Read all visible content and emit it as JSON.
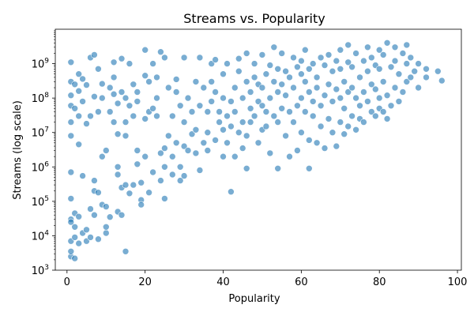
{
  "chart_data": {
    "type": "scatter",
    "title": "Streams vs. Popularity",
    "xlabel": "Popularity",
    "ylabel": "Streams (log scale)",
    "xlim": [
      -3,
      101
    ],
    "ylim": [
      1000,
      10000000000
    ],
    "yscale": "log",
    "x_ticks": [
      0,
      20,
      40,
      60,
      80,
      100
    ],
    "y_tick_exponents": [
      3,
      4,
      5,
      6,
      7,
      8,
      9
    ],
    "y_tick_base": "10",
    "grid": false,
    "point_color": "#1f77b4",
    "point_alpha": 0.6,
    "points": [
      [
        1,
        1100000000
      ],
      [
        1,
        30000
      ],
      [
        1,
        2500
      ],
      [
        1,
        3500
      ],
      [
        1,
        7000
      ],
      [
        1,
        25000
      ],
      [
        1,
        120000
      ],
      [
        1,
        700000
      ],
      [
        1,
        8000000
      ],
      [
        1,
        20000000
      ],
      [
        1,
        120000000
      ],
      [
        1,
        300000000
      ],
      [
        1,
        60000000
      ],
      [
        2,
        9000
      ],
      [
        2,
        45000
      ],
      [
        2,
        250000000
      ],
      [
        2,
        2200
      ],
      [
        2,
        18000
      ],
      [
        2,
        50000000
      ],
      [
        3,
        36000
      ],
      [
        3,
        4500000
      ],
      [
        3,
        30000000
      ],
      [
        3,
        500000000
      ],
      [
        3,
        160000000
      ],
      [
        3,
        6000
      ],
      [
        4,
        12000
      ],
      [
        4,
        80000000
      ],
      [
        4,
        360000000
      ],
      [
        4,
        550000
      ],
      [
        5,
        15000
      ],
      [
        5,
        18000000
      ],
      [
        5,
        240000000
      ],
      [
        5,
        7000
      ],
      [
        6,
        60000
      ],
      [
        6,
        1500000000
      ],
      [
        6,
        30000000
      ],
      [
        6,
        9000
      ],
      [
        7,
        40000
      ],
      [
        7,
        1800000000
      ],
      [
        7,
        110000000
      ],
      [
        7,
        400000
      ],
      [
        7,
        200000
      ],
      [
        8,
        180000
      ],
      [
        8,
        40000000
      ],
      [
        8,
        8000
      ],
      [
        8,
        700000000
      ],
      [
        9,
        2000000
      ],
      [
        9,
        100000000
      ],
      [
        9,
        80000
      ],
      [
        9,
        260000000
      ],
      [
        10,
        3000000
      ],
      [
        10,
        12000
      ],
      [
        10,
        70000
      ],
      [
        10,
        18000
      ],
      [
        11,
        40000000
      ],
      [
        11,
        200000000
      ],
      [
        11,
        35000
      ],
      [
        12,
        1100000000
      ],
      [
        12,
        400000000
      ],
      [
        12,
        130000000
      ],
      [
        12,
        20000000
      ],
      [
        13,
        600000
      ],
      [
        13,
        1000000
      ],
      [
        13,
        50000
      ],
      [
        13,
        9000000
      ],
      [
        13,
        70000000
      ],
      [
        14,
        40000
      ],
      [
        14,
        250000
      ],
      [
        14,
        1400000000
      ],
      [
        14,
        150000000
      ],
      [
        15,
        3500
      ],
      [
        15,
        100000000
      ],
      [
        15,
        300000
      ],
      [
        15,
        8000000
      ],
      [
        15,
        20000000
      ],
      [
        16,
        60000000
      ],
      [
        16,
        1000000000
      ],
      [
        16,
        170000
      ],
      [
        17,
        250000000
      ],
      [
        17,
        30000000
      ],
      [
        17,
        300000
      ],
      [
        18,
        3000000
      ],
      [
        18,
        1200000
      ],
      [
        18,
        80000000
      ],
      [
        18,
        150000000
      ],
      [
        19,
        110000
      ],
      [
        19,
        350000
      ],
      [
        19,
        80000
      ],
      [
        20,
        2500000000
      ],
      [
        20,
        25000000
      ],
      [
        20,
        450000000
      ],
      [
        20,
        2000000
      ],
      [
        21,
        40000000
      ],
      [
        21,
        300000000
      ],
      [
        21,
        180000
      ],
      [
        22,
        700000
      ],
      [
        22,
        1000000000
      ],
      [
        22,
        50000000
      ],
      [
        23,
        400000000
      ],
      [
        23,
        30000000
      ],
      [
        23,
        100000000
      ],
      [
        24,
        2200000000
      ],
      [
        24,
        400000
      ],
      [
        24,
        2500000
      ],
      [
        25,
        120000
      ],
      [
        25,
        1000000
      ],
      [
        25,
        3500000
      ],
      [
        25,
        1500000000
      ],
      [
        26,
        8000000
      ],
      [
        26,
        200000000
      ],
      [
        27,
        2000000
      ],
      [
        27,
        600000
      ],
      [
        27,
        30000000
      ],
      [
        28,
        150000000
      ],
      [
        28,
        5000000
      ],
      [
        28,
        350000000
      ],
      [
        29,
        1000000
      ],
      [
        29,
        400000
      ],
      [
        29,
        60000000
      ],
      [
        30,
        4000000
      ],
      [
        30,
        20000000
      ],
      [
        30,
        550000
      ],
      [
        30,
        1500000000
      ],
      [
        31,
        100000000
      ],
      [
        31,
        3000000
      ],
      [
        32,
        40000000
      ],
      [
        32,
        9000000
      ],
      [
        33,
        12000000
      ],
      [
        33,
        300000000
      ],
      [
        33,
        2500000
      ],
      [
        34,
        1500000000
      ],
      [
        34,
        60000000
      ],
      [
        34,
        800000
      ],
      [
        35,
        5000000
      ],
      [
        35,
        200000000
      ],
      [
        36,
        10000000
      ],
      [
        36,
        40000000
      ],
      [
        36,
        3000000
      ],
      [
        37,
        300000000
      ],
      [
        37,
        1000000000
      ],
      [
        37,
        80000000
      ],
      [
        38,
        6000000
      ],
      [
        38,
        150000000
      ],
      [
        38,
        1300000000
      ],
      [
        39,
        20000000
      ],
      [
        39,
        40000000
      ],
      [
        40,
        2000000
      ],
      [
        40,
        100000000
      ],
      [
        40,
        500000000
      ],
      [
        40,
        12000000
      ],
      [
        41,
        5000000
      ],
      [
        41,
        30000000
      ],
      [
        41,
        1000000000
      ],
      [
        42,
        190000
      ],
      [
        42,
        15000000
      ],
      [
        42,
        80000000
      ],
      [
        43,
        2000000
      ],
      [
        43,
        200000000
      ],
      [
        43,
        40000000
      ],
      [
        44,
        10000000
      ],
      [
        44,
        600000000
      ],
      [
        44,
        1400000000
      ],
      [
        45,
        20000000
      ],
      [
        45,
        3500000
      ],
      [
        45,
        100000000
      ],
      [
        46,
        900000
      ],
      [
        46,
        300000000
      ],
      [
        46,
        8000000
      ],
      [
        46,
        2000000000
      ],
      [
        47,
        50000000
      ],
      [
        47,
        150000000
      ],
      [
        47,
        20000000
      ],
      [
        48,
        400000000
      ],
      [
        48,
        1000000000
      ],
      [
        48,
        30000000
      ],
      [
        49,
        5000000
      ],
      [
        49,
        80000000
      ],
      [
        49,
        250000000
      ],
      [
        50,
        12000000
      ],
      [
        50,
        60000000
      ],
      [
        50,
        200000000
      ],
      [
        50,
        1800000000
      ],
      [
        51,
        40000000
      ],
      [
        51,
        500000000
      ],
      [
        51,
        15000000
      ],
      [
        52,
        2500000
      ],
      [
        52,
        100000000
      ],
      [
        52,
        900000000
      ],
      [
        53,
        30000000
      ],
      [
        53,
        300000000
      ],
      [
        53,
        3000000000
      ],
      [
        54,
        20000000
      ],
      [
        54,
        150000000
      ],
      [
        54,
        900000
      ],
      [
        54,
        700000000
      ],
      [
        55,
        50000000
      ],
      [
        55,
        250000000
      ],
      [
        55,
        2000000000
      ],
      [
        56,
        8000000
      ],
      [
        56,
        120000000
      ],
      [
        56,
        600000000
      ],
      [
        57,
        2000000
      ],
      [
        57,
        40000000
      ],
      [
        57,
        400000000
      ],
      [
        58,
        20000000
      ],
      [
        58,
        200000000
      ],
      [
        58,
        1500000000
      ],
      [
        59,
        60000000
      ],
      [
        59,
        800000000
      ],
      [
        59,
        3000000
      ],
      [
        60,
        10000000
      ],
      [
        60,
        100000000
      ],
      [
        60,
        500000000
      ],
      [
        60,
        1200000000
      ],
      [
        61,
        40000000
      ],
      [
        61,
        300000000
      ],
      [
        61,
        2500000000
      ],
      [
        62,
        900000
      ],
      [
        62,
        150000000
      ],
      [
        62,
        700000000
      ],
      [
        62,
        6000000
      ],
      [
        63,
        30000000
      ],
      [
        63,
        80000000
      ],
      [
        63,
        1000000000
      ],
      [
        64,
        5000000
      ],
      [
        64,
        200000000
      ],
      [
        64,
        400000000
      ],
      [
        65,
        15000000
      ],
      [
        65,
        60000000
      ],
      [
        65,
        1500000000
      ],
      [
        66,
        3500000
      ],
      [
        66,
        120000000
      ],
      [
        66,
        900000000
      ],
      [
        67,
        25000000
      ],
      [
        67,
        250000000
      ],
      [
        67,
        1800000000
      ],
      [
        68,
        10000000
      ],
      [
        68,
        80000000
      ],
      [
        68,
        600000000
      ],
      [
        69,
        4000000
      ],
      [
        69,
        180000000
      ],
      [
        69,
        1200000000
      ],
      [
        70,
        20000000
      ],
      [
        70,
        100000000
      ],
      [
        70,
        700000000
      ],
      [
        70,
        2500000000
      ],
      [
        71,
        50000000
      ],
      [
        71,
        300000000
      ],
      [
        71,
        9000000
      ],
      [
        72,
        15000000
      ],
      [
        72,
        150000000
      ],
      [
        72,
        1100000000
      ],
      [
        72,
        3500000000
      ],
      [
        73,
        30000000
      ],
      [
        73,
        200000000
      ],
      [
        73,
        800000000
      ],
      [
        74,
        12000000
      ],
      [
        74,
        100000000
      ],
      [
        74,
        2000000000
      ],
      [
        75,
        60000000
      ],
      [
        75,
        400000000
      ],
      [
        75,
        25000000
      ],
      [
        76,
        150000000
      ],
      [
        76,
        1200000000
      ],
      [
        76,
        20000000
      ],
      [
        77,
        80000000
      ],
      [
        77,
        600000000
      ],
      [
        77,
        3000000000
      ],
      [
        78,
        40000000
      ],
      [
        78,
        250000000
      ],
      [
        78,
        1500000000
      ],
      [
        79,
        30000000
      ],
      [
        79,
        180000000
      ],
      [
        79,
        900000000
      ],
      [
        80,
        50000000
      ],
      [
        80,
        100000000
      ],
      [
        80,
        700000000
      ],
      [
        80,
        2500000000
      ],
      [
        81,
        40000000
      ],
      [
        81,
        300000000
      ],
      [
        81,
        1800000000
      ],
      [
        82,
        120000000
      ],
      [
        82,
        4000000000
      ],
      [
        82,
        25000000
      ],
      [
        83,
        60000000
      ],
      [
        83,
        800000000
      ],
      [
        84,
        200000000
      ],
      [
        84,
        1200000000
      ],
      [
        84,
        3000000000
      ],
      [
        85,
        80000000
      ],
      [
        85,
        500000000
      ],
      [
        86,
        150000000
      ],
      [
        86,
        2000000000
      ],
      [
        87,
        300000000
      ],
      [
        87,
        1000000000
      ],
      [
        87,
        3500000000
      ],
      [
        88,
        400000000
      ],
      [
        88,
        1500000000
      ],
      [
        89,
        600000000
      ],
      [
        90,
        200000000
      ],
      [
        90,
        1000000000
      ],
      [
        92,
        400000000
      ],
      [
        92,
        700000000
      ],
      [
        95,
        600000000
      ],
      [
        96,
        320000000
      ]
    ]
  }
}
